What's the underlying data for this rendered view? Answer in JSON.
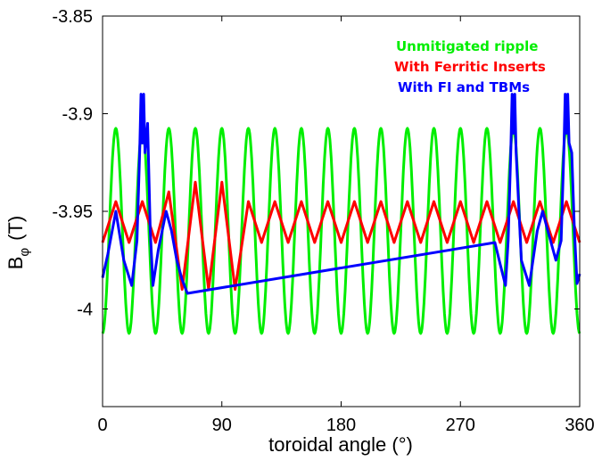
{
  "chart_data": {
    "type": "line",
    "xlabel": "toroidal angle (°)",
    "ylabel_main": "B",
    "ylabel_sub": "φ",
    "ylabel_unit": "(T)",
    "xlim": [
      0,
      360
    ],
    "ylim": [
      -4.05,
      -3.85
    ],
    "xticks": [
      0,
      90,
      180,
      270,
      360
    ],
    "xtick_labels": [
      "0",
      "90",
      "180",
      "270",
      "360"
    ],
    "yticks": [
      -3.85,
      -3.9,
      -3.95,
      -4
    ],
    "ytick_labels": [
      "-3.85",
      "-3.9",
      "-3.95",
      "-4"
    ],
    "grid": false,
    "legend_position": "top-right",
    "series": [
      {
        "name": "Unmitigated ripple",
        "color": "#00ee00",
        "kind": "sinusoid",
        "mean": -3.96,
        "amplitude": 0.0525,
        "period": 20,
        "phase_peak": 10
      },
      {
        "name": "With Ferritic Inserts",
        "color": "#ff0000",
        "kind": "points",
        "x": [
          0,
          10,
          20,
          30,
          40,
          50,
          60,
          70,
          80,
          90,
          100,
          110,
          120,
          130,
          140,
          150,
          160,
          170,
          180,
          190,
          200,
          210,
          220,
          230,
          240,
          250,
          260,
          270,
          280,
          290,
          300,
          310,
          320,
          330,
          340,
          350,
          360
        ],
        "y": [
          -3.966,
          -3.945,
          -3.966,
          -3.945,
          -3.966,
          -3.94,
          -3.99,
          -3.935,
          -3.99,
          -3.935,
          -3.99,
          -3.945,
          -3.966,
          -3.945,
          -3.966,
          -3.945,
          -3.966,
          -3.945,
          -3.966,
          -3.945,
          -3.966,
          -3.945,
          -3.966,
          -3.945,
          -3.966,
          -3.945,
          -3.966,
          -3.945,
          -3.966,
          -3.945,
          -3.966,
          -3.945,
          -3.966,
          -3.945,
          -3.966,
          -3.945,
          -3.966
        ]
      },
      {
        "name": "With FI and TBMs",
        "color": "#0000ff",
        "kind": "points",
        "x": [
          0,
          4,
          10,
          16,
          22,
          26,
          28,
          29,
          30,
          31,
          32,
          34,
          36,
          38,
          42,
          48,
          52,
          56,
          60,
          64,
          296,
          300,
          304,
          306,
          308,
          309,
          310,
          311,
          312,
          316,
          322,
          328,
          332,
          336,
          342,
          346,
          348,
          349,
          350,
          351,
          352,
          354,
          356,
          358,
          360
        ],
        "y": [
          -3.984,
          -3.972,
          -3.95,
          -3.975,
          -3.988,
          -3.965,
          -3.92,
          -3.89,
          -3.915,
          -3.89,
          -3.92,
          -3.905,
          -3.96,
          -3.988,
          -3.97,
          -3.95,
          -3.96,
          -3.975,
          -3.985,
          -3.992,
          -3.966,
          -3.977,
          -3.988,
          -3.965,
          -3.92,
          -3.89,
          -3.91,
          -3.89,
          -3.92,
          -3.975,
          -3.988,
          -3.96,
          -3.95,
          -3.96,
          -3.975,
          -3.965,
          -3.92,
          -3.89,
          -3.91,
          -3.89,
          -3.915,
          -3.92,
          -3.96,
          -3.987,
          -3.982
        ]
      }
    ]
  }
}
